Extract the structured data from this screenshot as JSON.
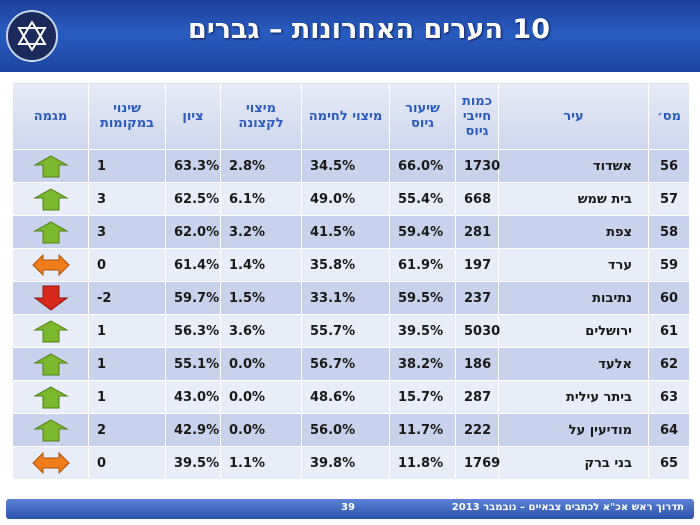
{
  "header": {
    "title": "10 הערים האחרונות – גברים"
  },
  "table": {
    "columns": [
      "מס׳",
      "עיר",
      "כמות חייבי גיוס",
      "שיעור גיוס",
      "מיצוי לחימה",
      "מיצוי לקצונה",
      "ציון",
      "שינוי במקומות",
      "מגמה"
    ],
    "rows": [
      {
        "no": "56",
        "city": "אשדוד",
        "count": "1730",
        "rate": "66.0%",
        "combat": "34.5%",
        "officer": "2.8%",
        "score": "63.3%",
        "change": "1",
        "trend": "up"
      },
      {
        "no": "57",
        "city": "בית שמש",
        "count": "668",
        "rate": "55.4%",
        "combat": "49.0%",
        "officer": "6.1%",
        "score": "62.5%",
        "change": "3",
        "trend": "up"
      },
      {
        "no": "58",
        "city": "צפת",
        "count": "281",
        "rate": "59.4%",
        "combat": "41.5%",
        "officer": "3.2%",
        "score": "62.0%",
        "change": "3",
        "trend": "up"
      },
      {
        "no": "59",
        "city": "ערד",
        "count": "197",
        "rate": "61.9%",
        "combat": "35.8%",
        "officer": "1.4%",
        "score": "61.4%",
        "change": "0",
        "trend": "same"
      },
      {
        "no": "60",
        "city": "נתיבות",
        "count": "237",
        "rate": "59.5%",
        "combat": "33.1%",
        "officer": "1.5%",
        "score": "59.7%",
        "change": "-2",
        "trend": "down"
      },
      {
        "no": "61",
        "city": "ירושלים",
        "count": "5030",
        "rate": "39.5%",
        "combat": "55.7%",
        "officer": "3.6%",
        "score": "56.3%",
        "change": "1",
        "trend": "up"
      },
      {
        "no": "62",
        "city": "אלעד",
        "count": "186",
        "rate": "38.2%",
        "combat": "56.7%",
        "officer": "0.0%",
        "score": "55.1%",
        "change": "1",
        "trend": "up"
      },
      {
        "no": "63",
        "city": "ביתר עילית",
        "count": "287",
        "rate": "15.7%",
        "combat": "48.6%",
        "officer": "0.0%",
        "score": "43.0%",
        "change": "1",
        "trend": "up"
      },
      {
        "no": "64",
        "city": "מודיעין על",
        "count": "222",
        "rate": "11.7%",
        "combat": "56.0%",
        "officer": "0.0%",
        "score": "42.9%",
        "change": "2",
        "trend": "up"
      },
      {
        "no": "65",
        "city": "בני ברק",
        "count": "1769",
        "rate": "11.8%",
        "combat": "39.8%",
        "officer": "1.1%",
        "score": "39.5%",
        "change": "0",
        "trend": "same"
      }
    ]
  },
  "footer": {
    "text": "תדרוך ראש אכ\"א לכתבים צבאיים – נובמבר 2013",
    "page": "39"
  },
  "colors": {
    "header_blue": "#1c44a0",
    "header_text": "#2a5cbf",
    "row_dark": "#c9d2ec",
    "row_light": "#e9edf7",
    "up_green": "#7bb82d",
    "down_red": "#d9281e",
    "same_orange": "#f07d1a"
  }
}
